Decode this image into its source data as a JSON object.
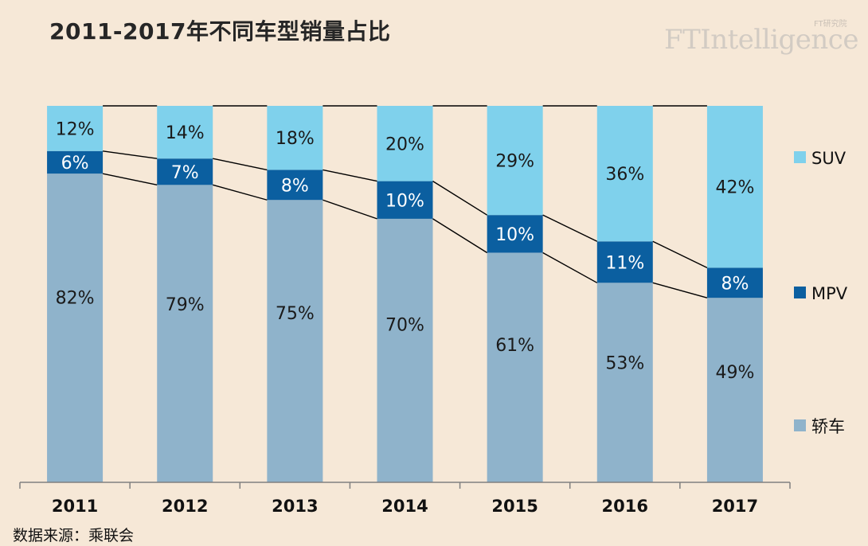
{
  "title": "2011-2017年不同车型销量占比",
  "brand": {
    "sub": "FT研究院",
    "name": "FTIntelligence"
  },
  "source": "数据来源：乘联会",
  "colors": {
    "background": "#f6e8d7",
    "suv": "#7fd1ec",
    "mpv": "#0b5fa0",
    "sedan": "#8fb3cb",
    "line": "#000000"
  },
  "chart_data": {
    "type": "bar",
    "stacked": true,
    "normalized": true,
    "categories": [
      "2011",
      "2012",
      "2013",
      "2014",
      "2015",
      "2016",
      "2017"
    ],
    "series": [
      {
        "name": "轿车",
        "values": [
          82,
          79,
          75,
          70,
          61,
          53,
          49
        ],
        "labels": [
          "82%",
          "79%",
          "75%",
          "70%",
          "61%",
          "53%",
          "49%"
        ],
        "color": "#8fb3cb"
      },
      {
        "name": "MPV",
        "values": [
          6,
          7,
          8,
          10,
          10,
          11,
          8
        ],
        "labels": [
          "6%",
          "7%",
          "8%",
          "10%",
          "10%",
          "11%",
          "8%"
        ],
        "color": "#0b5fa0"
      },
      {
        "name": "SUV",
        "values": [
          12,
          14,
          18,
          20,
          29,
          36,
          42
        ],
        "labels": [
          "12%",
          "14%",
          "18%",
          "20%",
          "29%",
          "36%",
          "42%"
        ],
        "color": "#7fd1ec"
      }
    ],
    "legend": {
      "position": "right",
      "order": [
        "SUV",
        "MPV",
        "轿车"
      ]
    },
    "series_lines": true,
    "grid": false,
    "ylim": [
      0,
      100
    ]
  }
}
